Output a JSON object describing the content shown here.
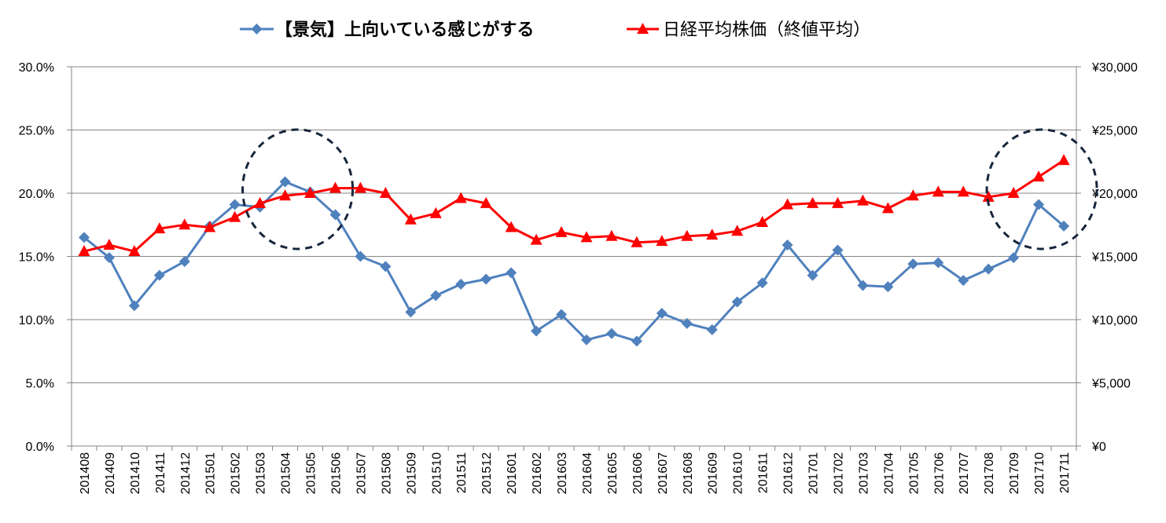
{
  "chart_data": {
    "type": "line",
    "title": "",
    "xlabel": "",
    "ylabel": "",
    "categories": [
      "201408",
      "201409",
      "201410",
      "201411",
      "201412",
      "201501",
      "201502",
      "201503",
      "201504",
      "201505",
      "201506",
      "201507",
      "201508",
      "201509",
      "201510",
      "201511",
      "201512",
      "201601",
      "201602",
      "201603",
      "201604",
      "201605",
      "201606",
      "201607",
      "201608",
      "201609",
      "201610",
      "201611",
      "201612",
      "201701",
      "201702",
      "201703",
      "201704",
      "201705",
      "201706",
      "201707",
      "201708",
      "201709",
      "201710",
      "201711"
    ],
    "y_left": {
      "ylim": [
        0,
        30
      ],
      "ticks": [
        "0.0%",
        "5.0%",
        "10.0%",
        "15.0%",
        "20.0%",
        "25.0%",
        "30.0%"
      ]
    },
    "y_right": {
      "ylim": [
        0,
        30000
      ],
      "ticks": [
        "¥0",
        "¥5,000",
        "¥10,000",
        "¥15,000",
        "¥20,000",
        "¥25,000",
        "¥30,000"
      ]
    },
    "legend_position": "top-center",
    "grid": true,
    "series": [
      {
        "name": "【景気】上向いている感じがする",
        "axis": "left",
        "color": "#4f81bd",
        "marker": "diamond",
        "values": [
          16.5,
          14.9,
          11.1,
          13.5,
          14.6,
          17.4,
          19.1,
          18.9,
          20.9,
          20.1,
          18.3,
          15.0,
          14.2,
          10.6,
          11.9,
          12.8,
          13.2,
          13.7,
          9.1,
          10.4,
          8.4,
          8.9,
          8.3,
          10.5,
          9.7,
          9.2,
          11.4,
          12.9,
          15.9,
          13.5,
          15.5,
          12.7,
          12.6,
          14.4,
          14.5,
          13.1,
          14.0,
          14.9,
          19.1,
          17.4
        ]
      },
      {
        "name": "日経平均株価（終値平均）",
        "axis": "right",
        "color": "#ff0000",
        "marker": "triangle",
        "values": [
          15400,
          15900,
          15400,
          17200,
          17500,
          17300,
          18100,
          19200,
          19800,
          20000,
          20400,
          20400,
          20000,
          17900,
          18400,
          19600,
          19200,
          17300,
          16300,
          16900,
          16500,
          16600,
          16100,
          16200,
          16600,
          16700,
          17000,
          17700,
          19100,
          19200,
          19200,
          19400,
          18800,
          19800,
          20100,
          20100,
          19700,
          20000,
          21300,
          22600
        ]
      }
    ],
    "annotations": [
      {
        "type": "dashed-circle",
        "around_category": "201504"
      },
      {
        "type": "dashed-circle",
        "around_category": "201710"
      }
    ]
  }
}
